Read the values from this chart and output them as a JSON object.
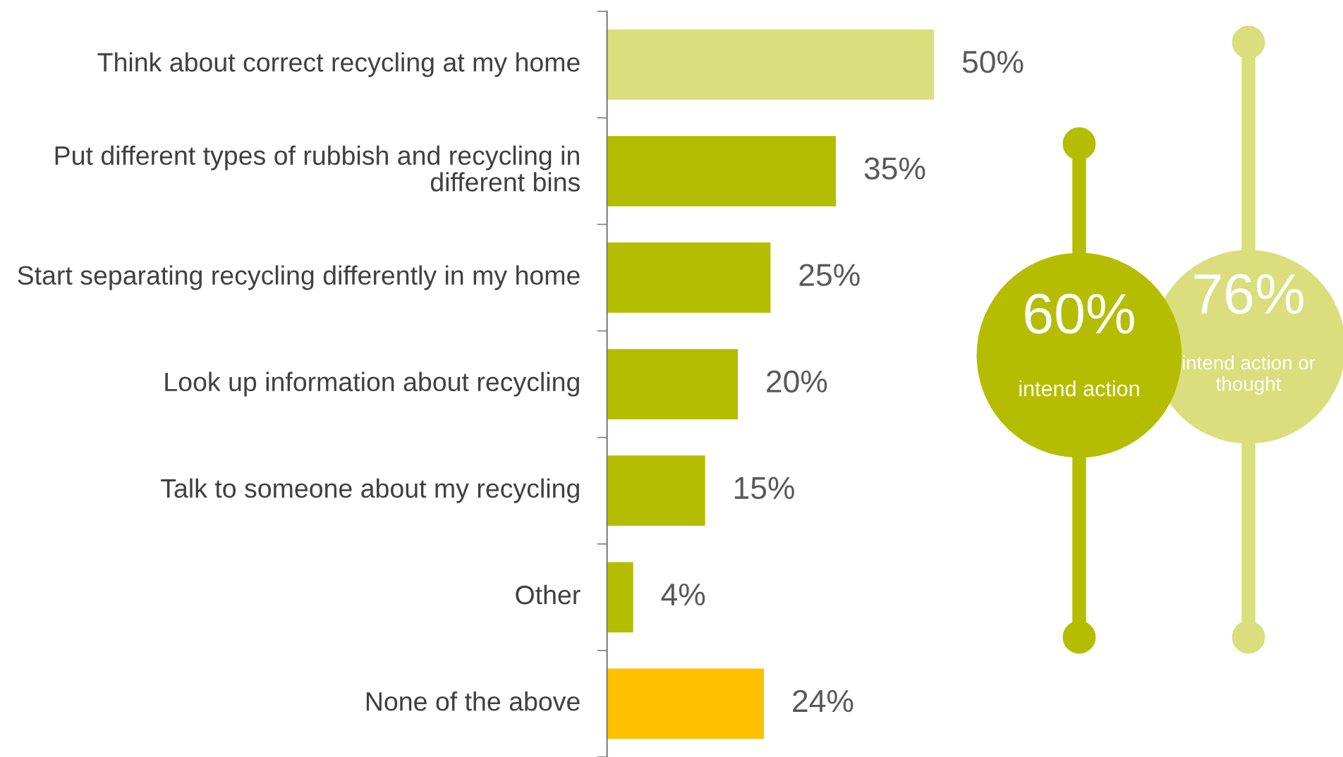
{
  "chart_data": {
    "type": "bar",
    "orientation": "horizontal",
    "categories": [
      "Think about correct recycling at my home",
      "Put different types of rubbish and recycling in different bins",
      "Start separating recycling differently in my home",
      "Look up information about recycling",
      "Talk to someone about my recycling",
      "Other",
      "None of the above"
    ],
    "values": [
      50,
      35,
      25,
      20,
      15,
      4,
      24
    ],
    "colors": [
      "#dade7c",
      "#b5bd00",
      "#b5bd00",
      "#b5bd00",
      "#b5bd00",
      "#b5bd00",
      "#ffc000"
    ],
    "value_labels": [
      "50%",
      "35%",
      "25%",
      "20%",
      "15%",
      "4%",
      "24%"
    ],
    "tick_labels": "y",
    "grid": false,
    "annotations": [
      "60%",
      "intend action",
      "76%",
      "intend action or thought"
    ]
  }
}
